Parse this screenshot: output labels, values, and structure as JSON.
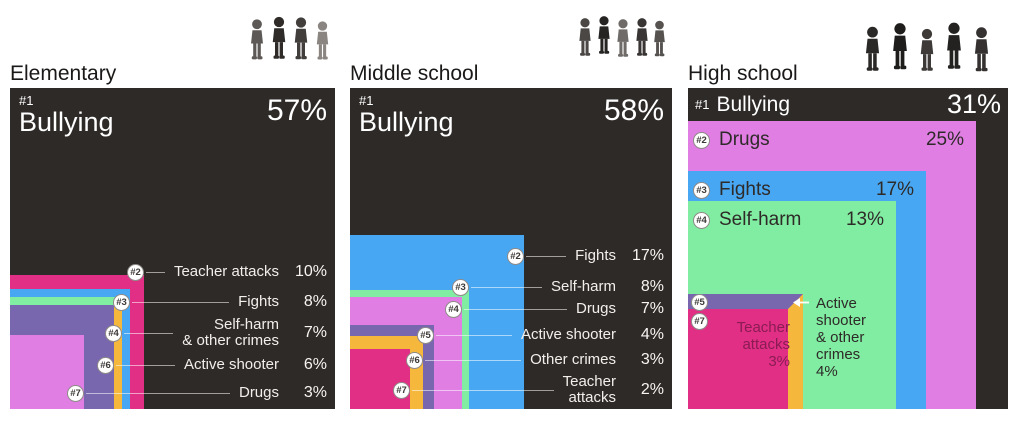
{
  "colors": {
    "board": "#2e2a28",
    "bullying": "#2e2a28",
    "teacher_attacks": "#e22f86",
    "fights": "#48a7f2",
    "self_harm": "#81eda2",
    "drugs": "#e07ee4",
    "active_shooter": "#7867af",
    "other_crimes": "#f5b83d",
    "light_text": "#f2efeb",
    "dark_text": "#2e2a28",
    "teacher_attacks_note_text": "#8a1c53"
  },
  "chart_data": [
    {
      "type": "nested-squares",
      "layout": "anchored-bottom-left",
      "unit": "percent",
      "title": "Elementary",
      "top": {
        "rank": "#1",
        "label": "Bullying",
        "value": 57,
        "pct": "57%"
      },
      "items": [
        {
          "rank": "#2",
          "label": "Teacher attacks",
          "value": 10,
          "pct": "10%",
          "color_key": "teacher_attacks"
        },
        {
          "rank": "#3",
          "label": "Fights",
          "value": 8,
          "pct": "8%",
          "color_key": "fights"
        },
        {
          "rank": "#4",
          "label": "Self-harm & other crimes",
          "label_lines": [
            "Self-harm",
            "& other crimes"
          ],
          "value": 7,
          "pct": "7%",
          "color_key": "self_harm",
          "tie_color_key": "other_crimes"
        },
        {
          "rank": "#6",
          "label": "Active shooter",
          "value": 6,
          "pct": "6%",
          "color_key": "active_shooter"
        },
        {
          "rank": "#7",
          "label": "Drugs",
          "value": 3,
          "pct": "3%",
          "color_key": "drugs"
        }
      ]
    },
    {
      "type": "nested-squares",
      "layout": "anchored-bottom-left",
      "unit": "percent",
      "title": "Middle school",
      "top": {
        "rank": "#1",
        "label": "Bullying",
        "value": 58,
        "pct": "58%"
      },
      "items": [
        {
          "rank": "#2",
          "label": "Fights",
          "value": 17,
          "pct": "17%",
          "color_key": "fights"
        },
        {
          "rank": "#3",
          "label": "Self-harm",
          "value": 8,
          "pct": "8%",
          "color_key": "self_harm"
        },
        {
          "rank": "#4",
          "label": "Drugs",
          "value": 7,
          "pct": "7%",
          "color_key": "drugs"
        },
        {
          "rank": "#5",
          "label": "Active shooter",
          "value": 4,
          "pct": "4%",
          "color_key": "active_shooter"
        },
        {
          "rank": "#6",
          "label": "Other crimes",
          "value": 3,
          "pct": "3%",
          "color_key": "other_crimes"
        },
        {
          "rank": "#7",
          "label": "Teacher attacks",
          "label_lines": [
            "Teacher",
            "attacks"
          ],
          "value": 2,
          "pct": "2%",
          "color_key": "teacher_attacks"
        }
      ]
    },
    {
      "type": "nested-squares",
      "layout": "anchored-bottom-left",
      "unit": "percent",
      "title": "High school",
      "top": {
        "rank": "#1",
        "label": "Bullying",
        "value": 31,
        "pct": "31%"
      },
      "items": [
        {
          "rank": "#2",
          "label": "Drugs",
          "value": 25,
          "pct": "25%",
          "color_key": "drugs"
        },
        {
          "rank": "#3",
          "label": "Fights",
          "value": 17,
          "pct": "17%",
          "color_key": "fights"
        },
        {
          "rank": "#4",
          "label": "Self-harm",
          "value": 13,
          "pct": "13%",
          "color_key": "self_harm"
        },
        {
          "rank": "#5",
          "label": "Active shooter & other crimes",
          "label_lines": [
            "Active",
            "shooter",
            "& other",
            "crimes"
          ],
          "value": 4,
          "pct": "4%",
          "color_key": "active_shooter",
          "tie_color_key": "other_crimes"
        },
        {
          "rank": "#7",
          "label": "Teacher attacks",
          "label_lines": [
            "Teacher",
            "attacks"
          ],
          "value": 3,
          "pct": "3%",
          "color_key": "teacher_attacks"
        }
      ]
    }
  ]
}
